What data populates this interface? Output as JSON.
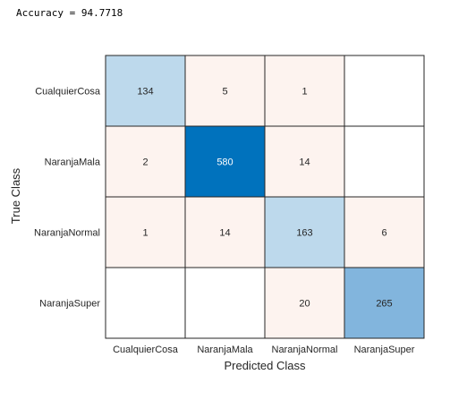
{
  "console": {
    "accuracy_line": "Accuracy = 94.7718"
  },
  "colors": {
    "diag_light": "#BDD9EC",
    "diag_mid": "#82B5DD",
    "diag_dark": "#0072BD",
    "offdiag": "#FDF3EF",
    "empty": "#FFFFFF",
    "grid": "#262626"
  },
  "chart_data": {
    "type": "heatmap",
    "title": "",
    "xlabel": "Predicted Class",
    "ylabel": "True Class",
    "classes": [
      "CualquierCosa",
      "NaranjaMala",
      "NaranjaNormal",
      "NaranjaSuper"
    ],
    "matrix": [
      [
        134,
        5,
        1,
        0
      ],
      [
        2,
        580,
        14,
        0
      ],
      [
        1,
        14,
        163,
        6
      ],
      [
        0,
        0,
        20,
        265
      ]
    ],
    "zero_shown_as_blank": true,
    "grid": true
  }
}
